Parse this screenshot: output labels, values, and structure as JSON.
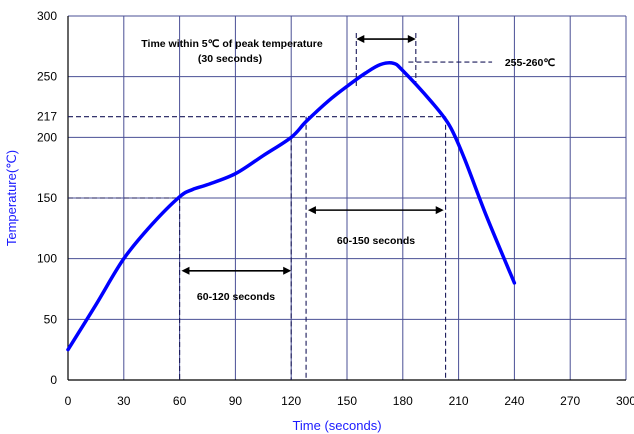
{
  "chart_data": {
    "type": "line",
    "xlabel": "Time (seconds)",
    "ylabel": "Temperature(℃)",
    "xlim": [
      0,
      300
    ],
    "ylim": [
      0,
      300
    ],
    "xticks": [
      0,
      30,
      60,
      90,
      120,
      150,
      180,
      210,
      240,
      270,
      300
    ],
    "yticks": [
      0,
      50,
      100,
      150,
      200,
      217,
      250,
      300
    ],
    "grid": true,
    "line_color": "#0000ff",
    "series": [
      {
        "x": [
          0,
          15,
          30,
          45,
          60,
          67,
          75,
          90,
          105,
          120,
          128,
          140,
          150,
          160,
          168,
          175,
          180,
          195,
          205,
          213,
          225,
          240
        ],
        "y": [
          25,
          62,
          100,
          128,
          151,
          157,
          161,
          170,
          185,
          200,
          213,
          230,
          242,
          253,
          260,
          261,
          255,
          230,
          210,
          183,
          135,
          80
        ]
      }
    ],
    "annotations": {
      "peak_window_line1": "Time within 5℃ of peak temperature",
      "peak_window_line2": "(30 seconds)",
      "peak_label": "255-260℃",
      "above_150_label": "60-120 seconds",
      "above_217_label": "60-150 seconds"
    },
    "reference_lines": {
      "y150_x_end": 60,
      "y217_x_end": 203,
      "v_150_x": [
        60,
        120
      ],
      "v_217_x": [
        128,
        203
      ],
      "peak_window_x": [
        155,
        187
      ],
      "peak_y": 262,
      "arrow_150": {
        "x": [
          61,
          120
        ],
        "y": 90
      },
      "arrow_217": {
        "x": [
          129,
          202
        ],
        "y": 140
      },
      "arrow_peak": {
        "x": [
          155,
          187
        ],
        "y": 281
      }
    }
  }
}
